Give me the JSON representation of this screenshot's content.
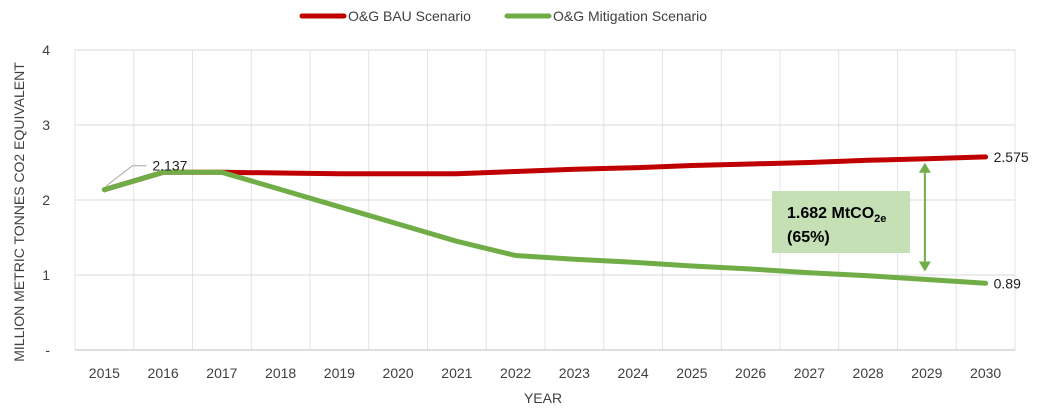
{
  "chart_data": {
    "type": "line",
    "title": "",
    "xlabel": "YEAR",
    "ylabel": "MILLION METRIC TONNES CO2 EQUIVALENT",
    "ylim": [
      0,
      4
    ],
    "y_ticks": [
      "-",
      "1",
      "2",
      "3",
      "4"
    ],
    "grid": "vertical and horizontal",
    "legend_position": "top-center",
    "categories": [
      "2015",
      "2016",
      "2017",
      "2018",
      "2019",
      "2020",
      "2021",
      "2022",
      "2023",
      "2024",
      "2025",
      "2026",
      "2027",
      "2028",
      "2029",
      "2030"
    ],
    "series": [
      {
        "name": "O&G BAU Scenario",
        "color": "#C00000",
        "values": [
          2.137,
          2.37,
          2.37,
          2.36,
          2.35,
          2.35,
          2.35,
          2.38,
          2.41,
          2.43,
          2.46,
          2.48,
          2.5,
          2.53,
          2.55,
          2.575
        ]
      },
      {
        "name": "O&G Mitigation Scenario",
        "color": "#70AD47",
        "values": [
          2.137,
          2.37,
          2.37,
          2.14,
          1.91,
          1.68,
          1.45,
          1.26,
          1.21,
          1.17,
          1.12,
          1.08,
          1.03,
          0.99,
          0.94,
          0.89
        ]
      }
    ],
    "data_labels": [
      {
        "series": "O&G BAU Scenario",
        "category": "2015",
        "text": "2.137"
      },
      {
        "series": "O&G BAU Scenario",
        "category": "2030",
        "text": "2.575"
      },
      {
        "series": "O&G Mitigation Scenario",
        "category": "2030",
        "text": "0.89"
      }
    ],
    "annotation": {
      "line1_main": "1.682 MtCO",
      "line1_sub": "2e",
      "line2": "(65%)",
      "box_color": "#C5E0B4",
      "arrow_color": "#70AD47",
      "arrow_category": "2029"
    }
  }
}
